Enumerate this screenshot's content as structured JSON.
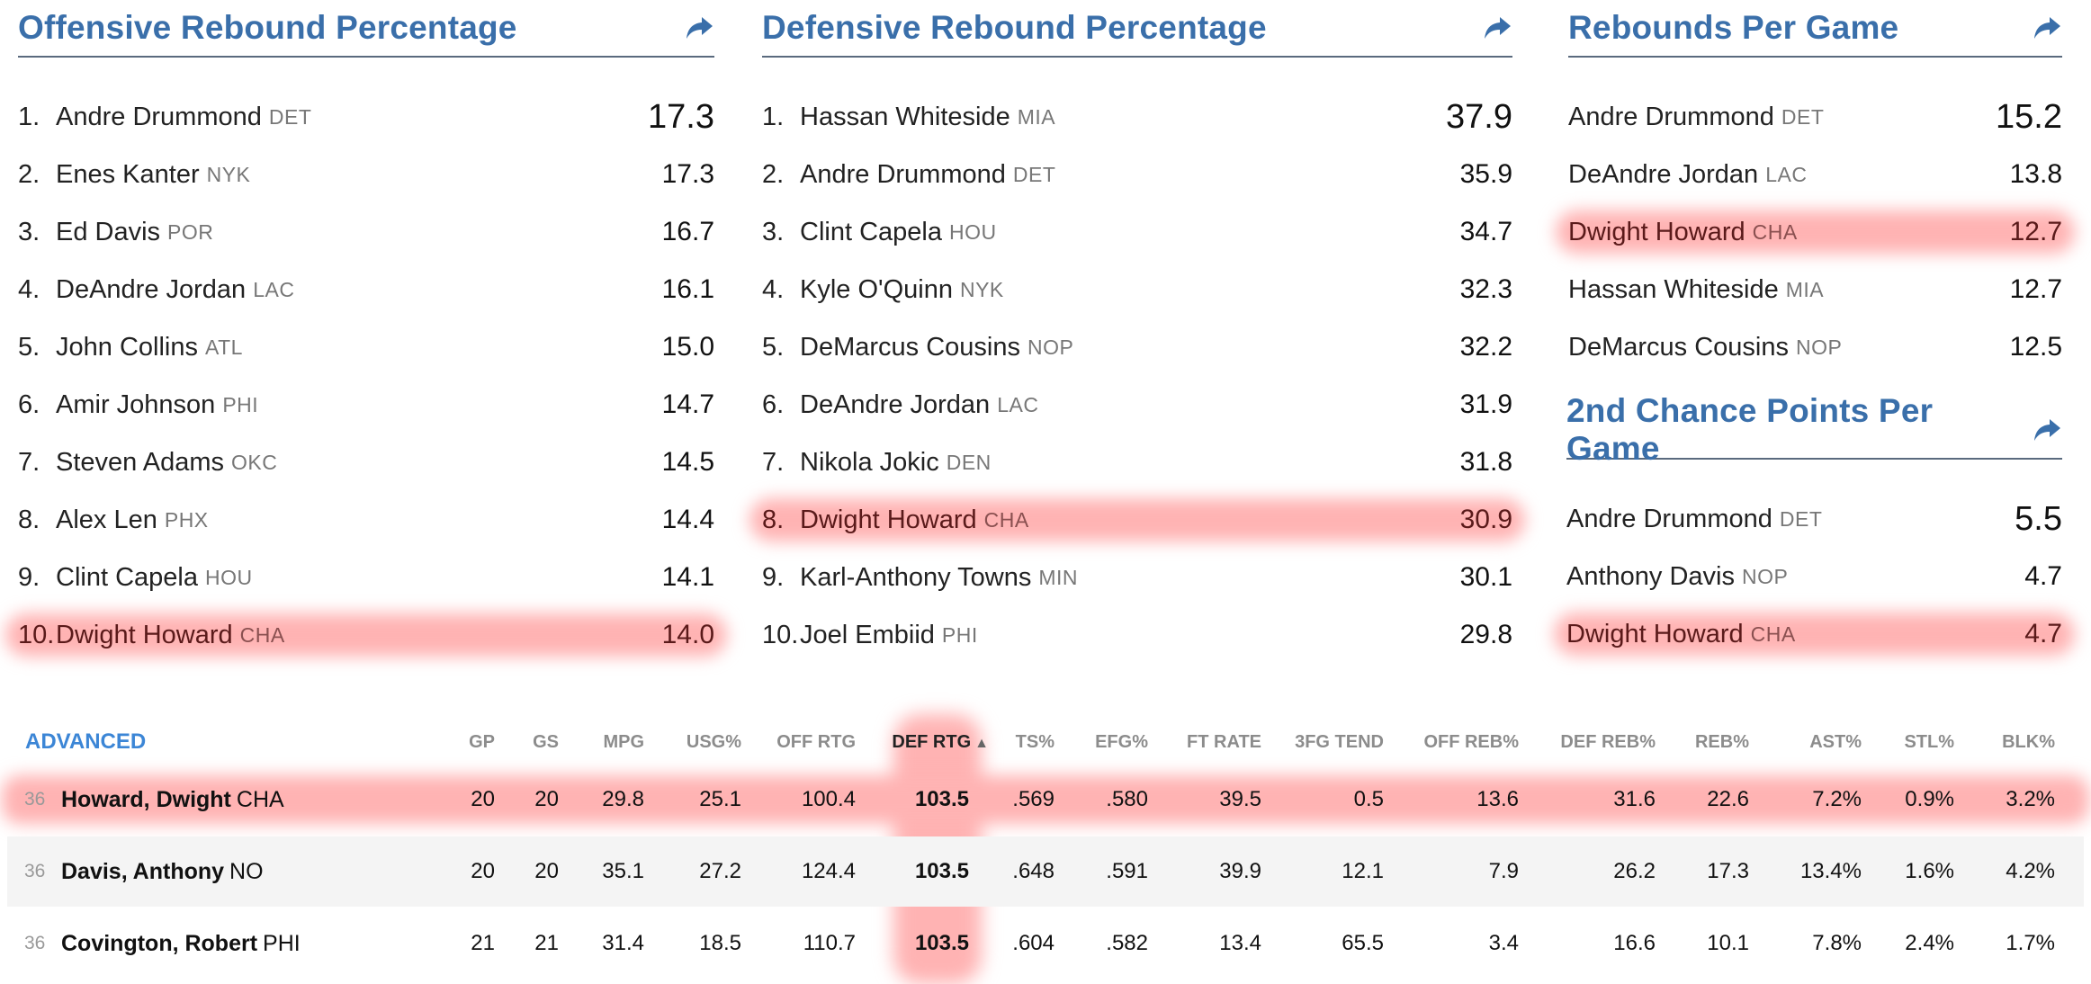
{
  "panels": {
    "oreb": {
      "title": "Offensive Rebound Percentage",
      "rows": [
        {
          "rank": "1.",
          "name": "Andre Drummond",
          "team": "DET",
          "value": "17.3",
          "highlight": false
        },
        {
          "rank": "2.",
          "name": "Enes Kanter",
          "team": "NYK",
          "value": "17.3",
          "highlight": false
        },
        {
          "rank": "3.",
          "name": "Ed Davis",
          "team": "POR",
          "value": "16.7",
          "highlight": false
        },
        {
          "rank": "4.",
          "name": "DeAndre Jordan",
          "team": "LAC",
          "value": "16.1",
          "highlight": false
        },
        {
          "rank": "5.",
          "name": "John Collins",
          "team": "ATL",
          "value": "15.0",
          "highlight": false
        },
        {
          "rank": "6.",
          "name": "Amir Johnson",
          "team": "PHI",
          "value": "14.7",
          "highlight": false
        },
        {
          "rank": "7.",
          "name": "Steven Adams",
          "team": "OKC",
          "value": "14.5",
          "highlight": false
        },
        {
          "rank": "8.",
          "name": "Alex Len",
          "team": "PHX",
          "value": "14.4",
          "highlight": false
        },
        {
          "rank": "9.",
          "name": "Clint Capela",
          "team": "HOU",
          "value": "14.1",
          "highlight": false
        },
        {
          "rank": "10.",
          "name": "Dwight Howard",
          "team": "CHA",
          "value": "14.0",
          "highlight": true
        }
      ]
    },
    "dreb": {
      "title": "Defensive Rebound Percentage",
      "rows": [
        {
          "rank": "1.",
          "name": "Hassan Whiteside",
          "team": "MIA",
          "value": "37.9",
          "highlight": false
        },
        {
          "rank": "2.",
          "name": "Andre Drummond",
          "team": "DET",
          "value": "35.9",
          "highlight": false
        },
        {
          "rank": "3.",
          "name": "Clint Capela",
          "team": "HOU",
          "value": "34.7",
          "highlight": false
        },
        {
          "rank": "4.",
          "name": "Kyle O'Quinn",
          "team": "NYK",
          "value": "32.3",
          "highlight": false
        },
        {
          "rank": "5.",
          "name": "DeMarcus Cousins",
          "team": "NOP",
          "value": "32.2",
          "highlight": false
        },
        {
          "rank": "6.",
          "name": "DeAndre Jordan",
          "team": "LAC",
          "value": "31.9",
          "highlight": false
        },
        {
          "rank": "7.",
          "name": "Nikola Jokic",
          "team": "DEN",
          "value": "31.8",
          "highlight": false
        },
        {
          "rank": "8.",
          "name": "Dwight Howard",
          "team": "CHA",
          "value": "30.9",
          "highlight": true
        },
        {
          "rank": "9.",
          "name": "Karl-Anthony Towns",
          "team": "MIN",
          "value": "30.1",
          "highlight": false
        },
        {
          "rank": "10.",
          "name": "Joel Embiid",
          "team": "PHI",
          "value": "29.8",
          "highlight": false
        }
      ]
    },
    "rpg": {
      "title": "Rebounds Per Game",
      "rows": [
        {
          "rank": "",
          "name": "Andre Drummond",
          "team": "DET",
          "value": "15.2",
          "highlight": false
        },
        {
          "rank": "",
          "name": "DeAndre Jordan",
          "team": "LAC",
          "value": "13.8",
          "highlight": false
        },
        {
          "rank": "",
          "name": "Dwight Howard",
          "team": "CHA",
          "value": "12.7",
          "highlight": true
        },
        {
          "rank": "",
          "name": "Hassan Whiteside",
          "team": "MIA",
          "value": "12.7",
          "highlight": false
        },
        {
          "rank": "",
          "name": "DeMarcus Cousins",
          "team": "NOP",
          "value": "12.5",
          "highlight": false
        }
      ]
    },
    "scp": {
      "title": "2nd Chance Points Per Game",
      "rows": [
        {
          "rank": "",
          "name": "Andre Drummond",
          "team": "DET",
          "value": "5.5",
          "highlight": false
        },
        {
          "rank": "",
          "name": "Anthony Davis",
          "team": "NOP",
          "value": "4.7",
          "highlight": false
        },
        {
          "rank": "",
          "name": "Dwight Howard",
          "team": "CHA",
          "value": "4.7",
          "highlight": true
        }
      ]
    }
  },
  "advanced": {
    "title": "ADVANCED",
    "sort_arrow": "▲",
    "headers": [
      "GP",
      "GS",
      "MPG",
      "USG%",
      "OFF RTG",
      "DEF RTG",
      "TS%",
      "EFG%",
      "FT RATE",
      "3FG TEND",
      "OFF REB%",
      "DEF REB%",
      "REB%",
      "AST%",
      "STL%",
      "BLK%"
    ],
    "rows": [
      {
        "rank": "36",
        "name": "Howard, Dwight",
        "team": "CHA",
        "highlight": true,
        "values": [
          "20",
          "20",
          "29.8",
          "25.1",
          "100.4",
          "103.5",
          ".569",
          ".580",
          "39.5",
          "0.5",
          "13.6",
          "31.6",
          "22.6",
          "7.2%",
          "0.9%",
          "3.2%"
        ]
      },
      {
        "rank": "36",
        "name": "Davis, Anthony",
        "team": "NO",
        "highlight": false,
        "values": [
          "20",
          "20",
          "35.1",
          "27.2",
          "124.4",
          "103.5",
          ".648",
          ".591",
          "39.9",
          "12.1",
          "7.9",
          "26.2",
          "17.3",
          "13.4%",
          "1.6%",
          "4.2%"
        ]
      },
      {
        "rank": "36",
        "name": "Covington, Robert",
        "team": "PHI",
        "highlight": false,
        "values": [
          "21",
          "21",
          "31.4",
          "18.5",
          "110.7",
          "103.5",
          ".604",
          ".582",
          "13.4",
          "65.5",
          "3.4",
          "16.6",
          "10.1",
          "7.8%",
          "2.4%",
          "1.7%"
        ]
      }
    ]
  }
}
